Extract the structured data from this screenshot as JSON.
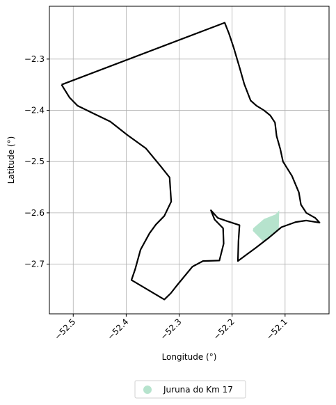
{
  "chart_data": {
    "type": "map",
    "title": "",
    "xlabel": "Longitude (°)",
    "ylabel": "Latitude (°)",
    "xlim": [
      -52.545,
      -52.017
    ],
    "ylim": [
      -2.797,
      -2.197
    ],
    "grid": true,
    "x_ticks": [
      -52.5,
      -52.4,
      -52.3,
      -52.2,
      -52.1
    ],
    "x_tick_labels": [
      "−52.5",
      "−52.4",
      "−52.3",
      "−52.2",
      "−52.1"
    ],
    "y_ticks": [
      -2.3,
      -2.4,
      -2.5,
      -2.6,
      -2.7
    ],
    "y_tick_labels": [
      "−2.3",
      "−2.4",
      "−2.5",
      "−2.6",
      "−2.7"
    ],
    "boundary": {
      "color": "#000000",
      "points": [
        [
          -52.522,
          -2.35
        ],
        [
          -52.214,
          -2.229
        ],
        [
          -52.206,
          -2.25
        ],
        [
          -52.197,
          -2.278
        ],
        [
          -52.186,
          -2.316
        ],
        [
          -52.177,
          -2.349
        ],
        [
          -52.165,
          -2.381
        ],
        [
          -52.154,
          -2.391
        ],
        [
          -52.14,
          -2.4
        ],
        [
          -52.128,
          -2.41
        ],
        [
          -52.119,
          -2.424
        ],
        [
          -52.116,
          -2.45
        ],
        [
          -52.109,
          -2.476
        ],
        [
          -52.104,
          -2.5
        ],
        [
          -52.087,
          -2.528
        ],
        [
          -52.074,
          -2.56
        ],
        [
          -52.07,
          -2.584
        ],
        [
          -52.06,
          -2.6
        ],
        [
          -52.043,
          -2.61
        ],
        [
          -52.035,
          -2.619
        ],
        [
          -52.06,
          -2.615
        ],
        [
          -52.08,
          -2.618
        ],
        [
          -52.107,
          -2.628
        ],
        [
          -52.13,
          -2.648
        ],
        [
          -52.155,
          -2.668
        ],
        [
          -52.176,
          -2.684
        ],
        [
          -52.189,
          -2.694
        ],
        [
          -52.188,
          -2.655
        ],
        [
          -52.186,
          -2.624
        ],
        [
          -52.21,
          -2.616
        ],
        [
          -52.227,
          -2.61
        ],
        [
          -52.24,
          -2.595
        ],
        [
          -52.233,
          -2.613
        ],
        [
          -52.217,
          -2.63
        ],
        [
          -52.216,
          -2.66
        ],
        [
          -52.224,
          -2.693
        ],
        [
          -52.255,
          -2.694
        ],
        [
          -52.275,
          -2.705
        ],
        [
          -52.303,
          -2.74
        ],
        [
          -52.316,
          -2.757
        ],
        [
          -52.328,
          -2.769
        ],
        [
          -52.39,
          -2.731
        ],
        [
          -52.383,
          -2.71
        ],
        [
          -52.373,
          -2.672
        ],
        [
          -52.356,
          -2.64
        ],
        [
          -52.344,
          -2.623
        ],
        [
          -52.328,
          -2.606
        ],
        [
          -52.315,
          -2.578
        ],
        [
          -52.318,
          -2.531
        ],
        [
          -52.335,
          -2.509
        ],
        [
          -52.363,
          -2.474
        ],
        [
          -52.398,
          -2.448
        ],
        [
          -52.43,
          -2.422
        ],
        [
          -52.462,
          -2.406
        ],
        [
          -52.492,
          -2.391
        ],
        [
          -52.507,
          -2.375
        ],
        [
          -52.522,
          -2.35
        ]
      ]
    },
    "series": [
      {
        "name": "Juruna do Km 17",
        "color": "#b6e3cd",
        "polygon": [
          [
            -52.16,
            -2.63
          ],
          [
            -52.14,
            -2.612
          ],
          [
            -52.118,
            -2.603
          ],
          [
            -52.111,
            -2.595
          ],
          [
            -52.112,
            -2.632
          ],
          [
            -52.13,
            -2.648
          ],
          [
            -52.142,
            -2.655
          ],
          [
            -52.161,
            -2.635
          ]
        ]
      }
    ],
    "legend_position": "bottom-center"
  }
}
